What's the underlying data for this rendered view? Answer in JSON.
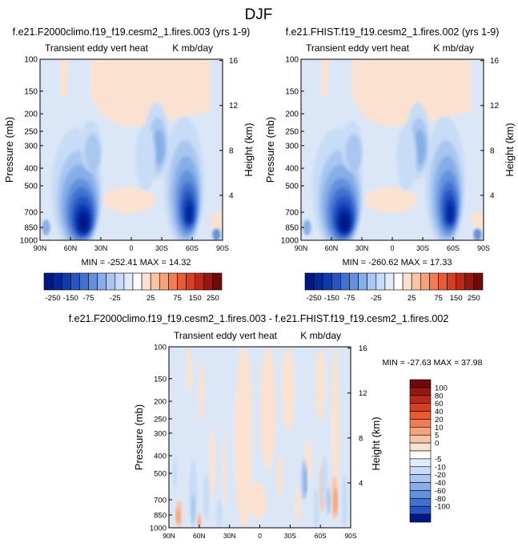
{
  "figure_title": "DJF",
  "colors": {
    "neg": [
      "#e0ecfa",
      "#c7dcf6",
      "#a9c6f0",
      "#86aee8",
      "#6391dc",
      "#4272d0",
      "#2655c2",
      "#0f3bb0",
      "#05279a",
      "#001786"
    ],
    "pos": [
      "#fbe2d0",
      "#f9c4a6",
      "#f6a37c",
      "#f27d55",
      "#ec5a33",
      "#d83f1f",
      "#b92916",
      "#951810",
      "#6e0b08"
    ],
    "blue_bg": "#dbe7f7",
    "peach": "#fbe2d0"
  },
  "chart_data": [
    {
      "type": "heatmap",
      "title": "f.e21.F2000climo.f19_f19.cesm2_1.fires.003 (yrs 1-9)",
      "left_string": "Transient eddy vert heat",
      "right_string": "K mb/day",
      "xlabel": "",
      "ylabel": "Pressure (mb)",
      "ylabel_right": "Height (km)",
      "x_ticks": [
        "90N",
        "60N",
        "30N",
        "0",
        "30S",
        "60S",
        "90S"
      ],
      "y_ticks": [
        "100",
        "150",
        "200",
        "250",
        "300",
        "400",
        "500",
        "700",
        "850",
        "1000"
      ],
      "y_right_ticks": [
        "16",
        "12",
        "8",
        "4"
      ],
      "stats": "MIN = -252.41   MAX =  14.32",
      "min": -252.41,
      "max": 14.32
    },
    {
      "type": "heatmap",
      "title": "f.e21.FHIST.f19_f19.cesm2_1.fires.002 (yrs 1-9)",
      "left_string": "Transient eddy vert heat",
      "right_string": "K mb/day",
      "xlabel": "",
      "ylabel": "Pressure (mb)",
      "ylabel_right": "Height (km)",
      "x_ticks": [
        "90N",
        "60N",
        "30N",
        "0",
        "30S",
        "60S",
        "90S"
      ],
      "y_ticks": [
        "100",
        "150",
        "200",
        "250",
        "300",
        "400",
        "500",
        "700",
        "850",
        "1000"
      ],
      "y_right_ticks": [
        "16",
        "12",
        "8",
        "4"
      ],
      "stats": "MIN = -260.62   MAX =  17.33",
      "min": -260.62,
      "max": 17.33
    },
    {
      "type": "heatmap",
      "title": "f.e21.F2000climo.f19_f19.cesm2_1.fires.003 - f.e21.FHIST.f19_f19.cesm2_1.fires.002",
      "left_string": "Transient eddy vert heat",
      "right_string": "K mb/day",
      "xlabel": "",
      "ylabel": "Pressure (mb)",
      "ylabel_right": "Height (km)",
      "x_ticks": [
        "90N",
        "60N",
        "30N",
        "0",
        "30S",
        "60S",
        "90S"
      ],
      "y_ticks": [
        "100",
        "150",
        "200",
        "250",
        "300",
        "400",
        "500",
        "700",
        "850",
        "1000"
      ],
      "y_right_ticks": [
        "16",
        "12",
        "8",
        "4"
      ],
      "stats": "MIN = -27.63   MAX =  37.98",
      "min": -27.63,
      "max": 37.98
    }
  ],
  "colorbar_top": {
    "labels": [
      "-250",
      "-150",
      "-75",
      "-25",
      "25",
      "75",
      "150",
      "250"
    ],
    "colors": [
      "#001786",
      "#05279a",
      "#0f3bb0",
      "#2655c2",
      "#4272d0",
      "#6391dc",
      "#86aee8",
      "#a9c6f0",
      "#c7dcf6",
      "#e0ecfa",
      "#ffffff",
      "#fbe2d0",
      "#f9c4a6",
      "#f6a37c",
      "#f27d55",
      "#ec5a33",
      "#d83f1f",
      "#b92916",
      "#951810",
      "#6e0b08"
    ]
  },
  "colorbar_diff": {
    "labels": [
      "100",
      "80",
      "60",
      "40",
      "20",
      "10",
      "5",
      "0",
      "-5",
      "-10",
      "-20",
      "-40",
      "-60",
      "-80",
      "-100"
    ],
    "colors": [
      "#6e0b08",
      "#951810",
      "#b92916",
      "#d83f1f",
      "#ec5a33",
      "#f27d55",
      "#f6a37c",
      "#f9c4a6",
      "#fbe2d0",
      "#ffffff",
      "#e0ecfa",
      "#c7dcf6",
      "#a9c6f0",
      "#86aee8",
      "#6391dc",
      "#4272d0",
      "#2655c2",
      "#001786"
    ]
  }
}
